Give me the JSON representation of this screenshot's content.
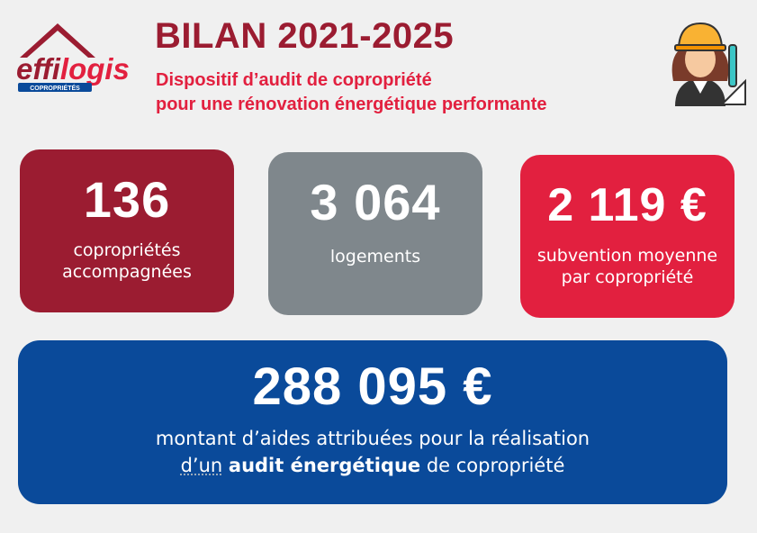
{
  "logo": {
    "name": [
      "effi",
      "logis"
    ],
    "tagline": "COPROPRIÉTÉS"
  },
  "header": {
    "title": "BILAN 2021-2025",
    "subtitle": [
      "Dispositif d’audit de copropriété",
      "pour une rénovation énergétique performante"
    ]
  },
  "cards": [
    {
      "value": "136",
      "label": [
        "copropriétés",
        "accompagnées"
      ]
    },
    {
      "value": "3 064",
      "label": [
        "logements"
      ]
    },
    {
      "value": "2 119 €",
      "label": [
        "subvention moyenne",
        "par copropriété"
      ]
    }
  ],
  "highlight": {
    "value": "288 095 €",
    "label_line1": "montant d’aides attribuées pour la réalisation",
    "label_line2": [
      "d’un",
      "audit énergétique",
      "de copropriété"
    ]
  }
}
